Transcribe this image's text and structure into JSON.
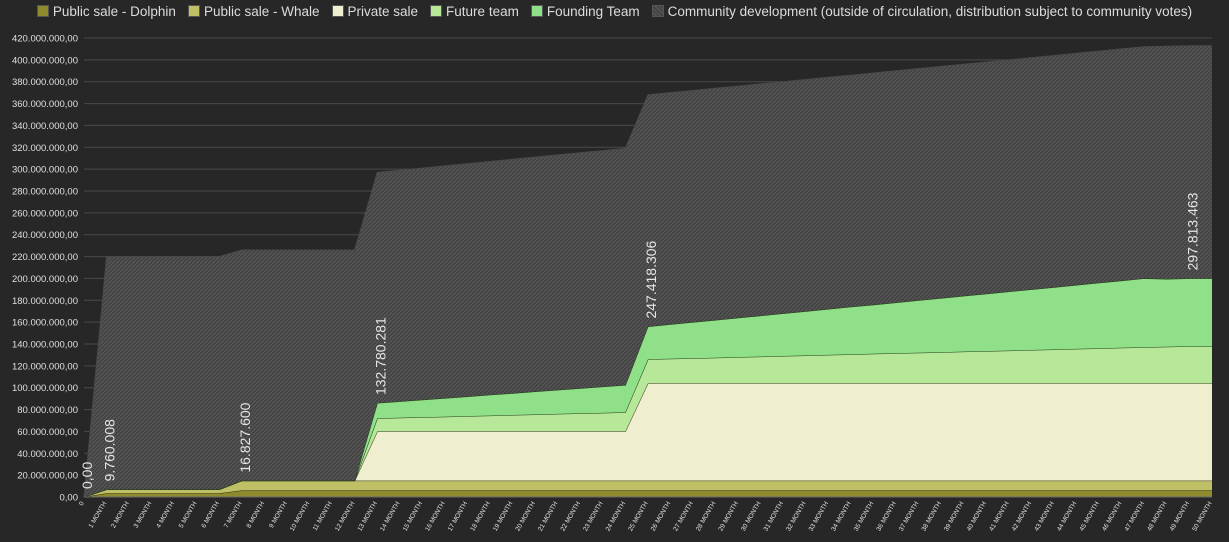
{
  "chart_data": {
    "type": "area",
    "stacked": true,
    "grid": true,
    "legend_position": "top",
    "ylim": [
      0,
      420000000
    ],
    "y_ticks": [
      "0,00",
      "20.000.000,00",
      "40.000.000,00",
      "60.000.000,00",
      "80.000.000,00",
      "100.000.000,00",
      "120.000.000,00",
      "140.000.000,00",
      "160.000.000,00",
      "180.000.000,00",
      "200.000.000,00",
      "220.000.000,00",
      "240.000.000,00",
      "260.000.000,00",
      "280.000.000,00",
      "300.000.000,00",
      "320.000.000,00",
      "340.000.000,00",
      "360.000.000,00",
      "380.000.000,00",
      "400.000.000,00",
      "420.000.000,00"
    ],
    "categories": [
      "0",
      "1 MONTH",
      "2 MONTH",
      "3 MONTH",
      "4 MONTH",
      "5 MONTH",
      "6 MONTH",
      "7 MONTH",
      "8 MONTH",
      "9 MONTH",
      "10 MONTH",
      "11 MONTH",
      "12 MONTH",
      "13 MONTH",
      "14 MONTH",
      "15 MONTH",
      "16 MONTH",
      "17 MONTH",
      "18 MONTH",
      "19 MONTH",
      "20 MONTH",
      "21 MONTH",
      "22 MONTH",
      "23 MONTH",
      "24 MONTH",
      "25 MONTH",
      "26 MONTH",
      "27 MONTH",
      "28 MONTH",
      "29 MONTH",
      "30 MONTH",
      "31 MONTH",
      "32 MONTH",
      "33 MONTH",
      "34 MONTH",
      "35 MONTH",
      "36 MONTH",
      "37 MONTH",
      "38 MONTH",
      "39 MONTH",
      "40 MONTH",
      "41 MONTH",
      "42 MONTH",
      "43 MONTH",
      "44 MONTH",
      "45 MONTH",
      "46 MONTH",
      "47 MONTH",
      "48 MONTH",
      "49 MONTH",
      "50 MONTH"
    ],
    "series": [
      {
        "name": "Public sale - Dolphin",
        "color": "#8f8a2e",
        "stroke": "#2a2a10",
        "pattern": false,
        "values": [
          0,
          3500000,
          3500000,
          3500000,
          3500000,
          3500000,
          3500000,
          6000000,
          6000000,
          6000000,
          6000000,
          6000000,
          6000000,
          6000000,
          6000000,
          6000000,
          6000000,
          6000000,
          6000000,
          6000000,
          6000000,
          6000000,
          6000000,
          6000000,
          6000000,
          6000000,
          6000000,
          6000000,
          6000000,
          6000000,
          6000000,
          6000000,
          6000000,
          6000000,
          6000000,
          6000000,
          6000000,
          6000000,
          6000000,
          6000000,
          6000000,
          6000000,
          6000000,
          6000000,
          6000000,
          6000000,
          6000000,
          6000000,
          6000000,
          6000000,
          6000000
        ]
      },
      {
        "name": "Public sale - Whale",
        "color": "#bfbf66",
        "stroke": "#2a2a10",
        "pattern": false,
        "values": [
          0,
          3500000,
          3500000,
          3500000,
          3500000,
          3500000,
          3500000,
          9000000,
          9000000,
          9000000,
          9000000,
          9000000,
          9000000,
          9000000,
          9000000,
          9000000,
          9000000,
          9000000,
          9000000,
          9000000,
          9000000,
          9000000,
          9000000,
          9000000,
          9000000,
          9000000,
          9000000,
          9000000,
          9000000,
          9000000,
          9000000,
          9000000,
          9000000,
          9000000,
          9000000,
          9000000,
          9000000,
          9000000,
          9000000,
          9000000,
          9000000,
          9000000,
          9000000,
          9000000,
          9000000,
          9000000,
          9000000,
          9000000,
          9000000,
          9000000,
          9000000
        ]
      },
      {
        "name": "Private sale",
        "color": "#efefcf",
        "stroke": "#3a3a20",
        "pattern": false,
        "values": [
          0,
          0,
          0,
          0,
          0,
          0,
          0,
          0,
          0,
          0,
          0,
          0,
          0,
          45000000,
          45000000,
          45000000,
          45000000,
          45000000,
          45000000,
          45000000,
          45000000,
          45000000,
          45000000,
          45000000,
          45000000,
          89000000,
          89000000,
          89000000,
          89000000,
          89000000,
          89000000,
          89000000,
          89000000,
          89000000,
          89000000,
          89000000,
          89000000,
          89000000,
          89000000,
          89000000,
          89000000,
          89000000,
          89000000,
          89000000,
          89000000,
          89000000,
          89000000,
          89000000,
          89000000,
          89000000,
          89000000
        ]
      },
      {
        "name": "Future team",
        "color": "#b7e89a",
        "stroke": "#1f3a12",
        "pattern": false,
        "values": [
          0,
          0,
          0,
          0,
          0,
          0,
          0,
          0,
          0,
          0,
          0,
          0,
          0,
          12000000,
          12500000,
          13000000,
          13500000,
          14000000,
          14500000,
          15000000,
          15500000,
          16000000,
          16500000,
          17000000,
          17500000,
          22000000,
          22500000,
          23000000,
          23500000,
          24000000,
          24500000,
          25000000,
          25500000,
          26000000,
          26500000,
          27000000,
          27500000,
          28000000,
          28500000,
          29000000,
          29500000,
          30000000,
          30500000,
          31000000,
          31500000,
          32000000,
          32500000,
          33000000,
          33500000,
          34000000,
          34000000
        ]
      },
      {
        "name": "Founding Team",
        "color": "#8fe088",
        "stroke": "#1f3a12",
        "pattern": false,
        "values": [
          0,
          0,
          0,
          0,
          0,
          0,
          0,
          0,
          0,
          0,
          0,
          0,
          0,
          14000000,
          15000000,
          16000000,
          17000000,
          18000000,
          19000000,
          20000000,
          21000000,
          22000000,
          23000000,
          24000000,
          25000000,
          30000000,
          31500000,
          33000000,
          34500000,
          36000000,
          37500000,
          39000000,
          40500000,
          42000000,
          43500000,
          45000000,
          46500000,
          48000000,
          49500000,
          51000000,
          52500000,
          54000000,
          55500000,
          57000000,
          58500000,
          60000000,
          61500000,
          63000000,
          62000000,
          62000000,
          62000000
        ]
      },
      {
        "name": "Community development (outside of circulation, distribution subject to community votes)",
        "color": "#4a4a4a",
        "stroke": "#4a4a4a",
        "pattern": true,
        "values": [
          0,
          213000000,
          213000000,
          213000000,
          213000000,
          213000000,
          213000000,
          211000000,
          211000000,
          211000000,
          211000000,
          211000000,
          211000000,
          211000000,
          211500000,
          212000000,
          212500000,
          213000000,
          213500000,
          214000000,
          214500000,
          215000000,
          215500000,
          216000000,
          216500000,
          212000000,
          212000000,
          212000000,
          212000000,
          212000000,
          212000000,
          212000000,
          212000000,
          212000000,
          212000000,
          212000000,
          212000000,
          212000000,
          212000000,
          212000000,
          212000000,
          212000000,
          212000000,
          212000000,
          212000000,
          212000000,
          212000000,
          212000000,
          213000000,
          213000000,
          213000000
        ]
      }
    ],
    "annotations": [
      {
        "text": "0,00",
        "x": "0"
      },
      {
        "text": "9.760.008",
        "x": "1 MONTH"
      },
      {
        "text": "16.827.600",
        "x": "7 MONTH"
      },
      {
        "text": "132.780.281",
        "x": "13 MONTH"
      },
      {
        "text": "247.418.306",
        "x": "25 MONTH"
      },
      {
        "text": "297.813.463",
        "x": "49 MONTH"
      }
    ],
    "colors": {
      "background": "#272727",
      "grid": "#4a4a4a",
      "axis_text": "#e0e0e0",
      "annotation_text": "#e6e6e6"
    }
  }
}
